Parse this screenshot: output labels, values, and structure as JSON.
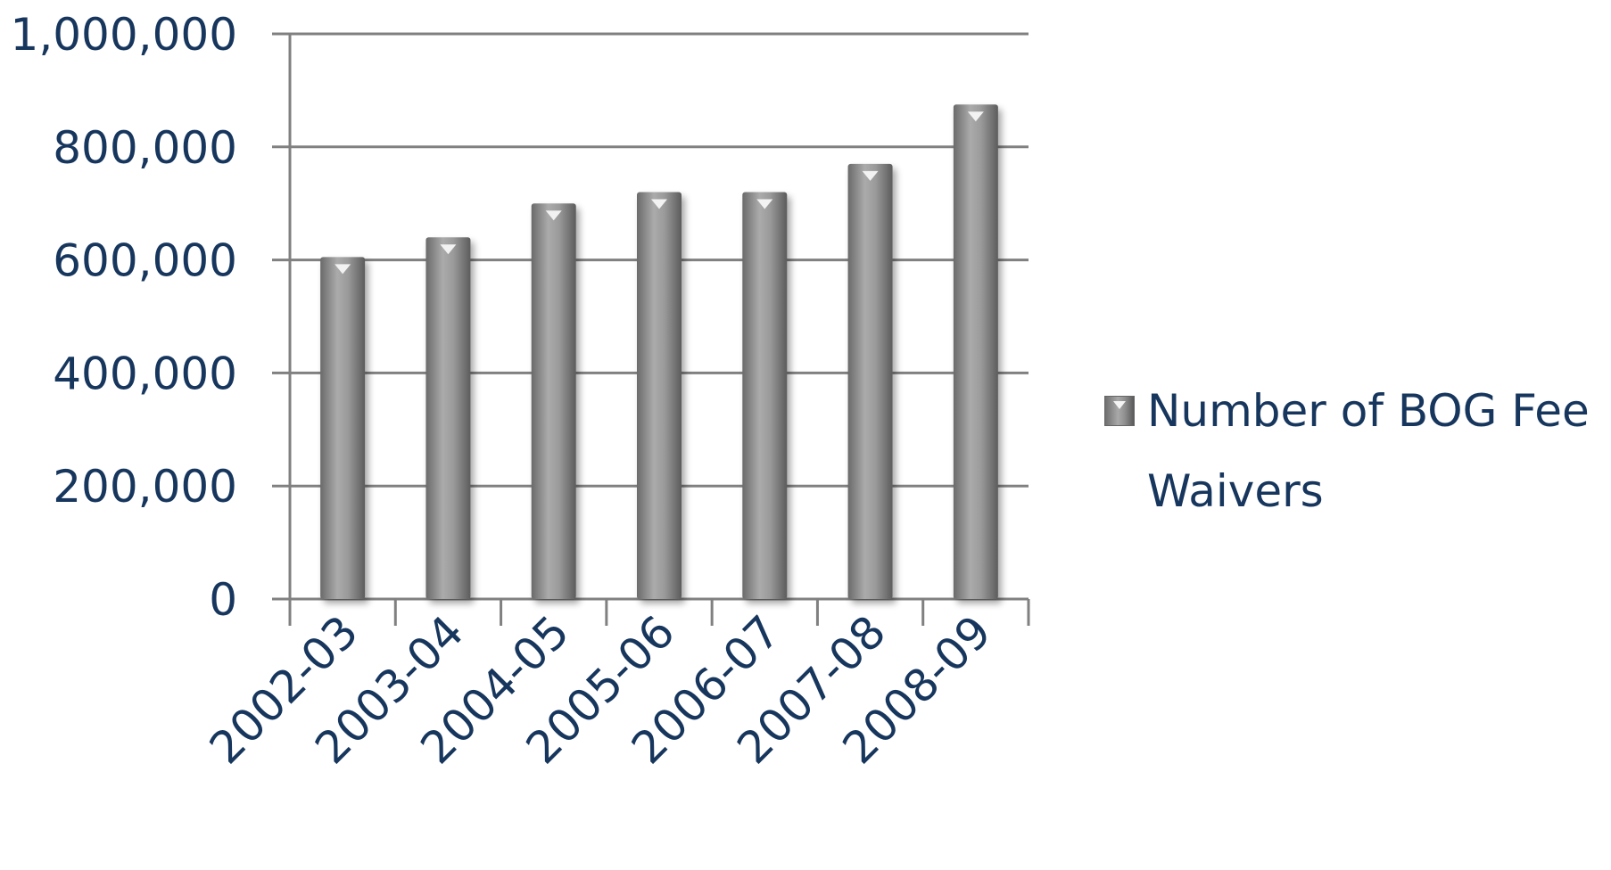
{
  "chart_data": {
    "type": "bar",
    "categories": [
      "2002-03",
      "2003-04",
      "2004-05",
      "2005-06",
      "2006-07",
      "2007-08",
      "2008-09"
    ],
    "series": [
      {
        "name": "Number of BOG Fee Waivers",
        "values": [
          605000,
          640000,
          700000,
          720000,
          720000,
          770000,
          875000
        ]
      }
    ],
    "ylim": [
      0,
      1000000
    ],
    "yticks": [
      "0",
      "200,000",
      "400,000",
      "600,000",
      "800,000",
      "1,000,000"
    ],
    "grid": true,
    "legend": "right",
    "colors": {
      "bar": "#8a8a8a",
      "grid": "#808080",
      "text": "#17365d"
    }
  }
}
